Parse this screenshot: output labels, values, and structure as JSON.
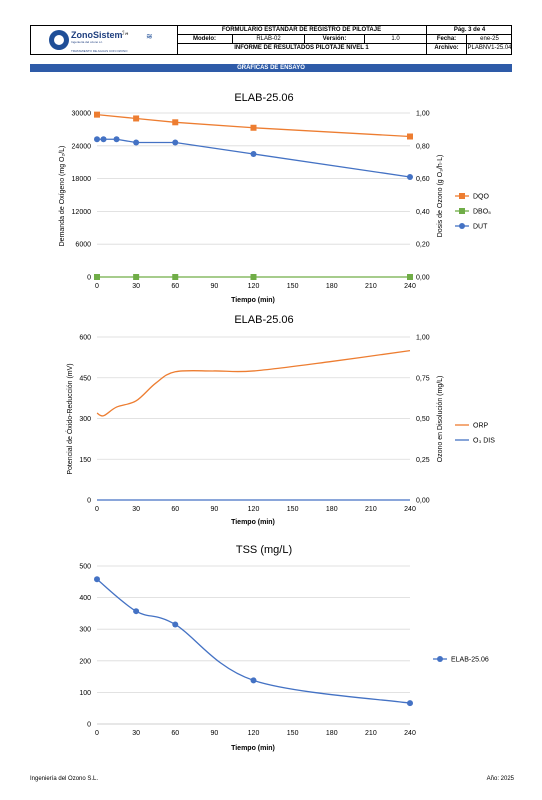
{
  "header": {
    "company_name": "ZonoSistem",
    "company_subtitle": "Ingeniería del ozono s.l.",
    "company_tagline": "TRATAMIENTO DE AGUAS CON OZONO",
    "form_title": "FORMULARIO ESTÁNDAR DE REGISTRO DE PILOTAJE",
    "page_label": "Pág. 3 de 4",
    "model_label": "Modelo:",
    "model_value": "RLAB-02",
    "version_label": "Versión:",
    "version_value": "1.0",
    "date_label": "Fecha:",
    "date_value": "ene-25",
    "report_title": "INFORME DE RESULTADOS PILOTAJE NIVEL 1",
    "file_label": "Archivo:",
    "file_value": "PLABNV1-25.04"
  },
  "section_title": "GRÁFICAS DE ENSAYO",
  "charts": {
    "c1": {
      "title": "ELAB-25.06",
      "ylabel": "Demanda de Oxígeno (mg O₂/L)",
      "y2label": "Dosis de Ozono (g O₃/h·L)",
      "xlabel": "Tiempo (min)"
    },
    "c2": {
      "title": "ELAB-25.06",
      "ylabel": "Potencial de Óxido-Reducción (mV)",
      "y2label": "Ozono en Disolución (mg/L)",
      "xlabel": "Tiempo (min)"
    },
    "c3": {
      "title": "TSS (mg/L)",
      "xlabel": "Tiempo (min)"
    }
  },
  "chart_data": [
    {
      "type": "line",
      "title": "ELAB-25.06",
      "xlabel": "Tiempo (min)",
      "ylabel": "Demanda de Oxígeno (mg O₂/L)",
      "y2label": "Dosis de Ozono (g O₃/h·L)",
      "xlim": [
        0,
        240
      ],
      "ylim": [
        0,
        30000
      ],
      "y2lim": [
        0,
        1.0
      ],
      "xticks": [
        "0",
        "30",
        "60",
        "90",
        "120",
        "150",
        "180",
        "210",
        "240"
      ],
      "yticks": [
        "0",
        "6000",
        "12000",
        "18000",
        "24000",
        "30000"
      ],
      "y2ticks": [
        "0,00",
        "0,20",
        "0,40",
        "0,60",
        "0,80",
        "1,00"
      ],
      "grid": true,
      "legend": "right",
      "series": [
        {
          "name": "DQO",
          "axis": "left",
          "color": "#ed7d31",
          "marker": "square",
          "x": [
            0,
            30,
            60,
            120,
            240
          ],
          "y": [
            29700,
            29000,
            28300,
            27300,
            25700
          ]
        },
        {
          "name": "DBO₅",
          "axis": "left",
          "color": "#70ad47",
          "marker": "square",
          "x": [
            0,
            30,
            60,
            120,
            240
          ],
          "y": [
            0,
            0,
            0,
            0,
            0
          ]
        },
        {
          "name": "DUT",
          "axis": "right",
          "color": "#4472c4",
          "marker": "circle",
          "x": [
            0,
            5,
            15,
            30,
            60,
            120,
            240
          ],
          "y": [
            0.84,
            0.84,
            0.84,
            0.82,
            0.82,
            0.75,
            0.61
          ]
        }
      ]
    },
    {
      "type": "line",
      "title": "ELAB-25.06",
      "xlabel": "Tiempo (min)",
      "ylabel": "Potencial de Óxido-Reducción (mV)",
      "y2label": "Ozono en Disolución (mg/L)",
      "xlim": [
        0,
        240
      ],
      "ylim": [
        0,
        600
      ],
      "y2lim": [
        0,
        1.0
      ],
      "xticks": [
        "0",
        "30",
        "60",
        "90",
        "120",
        "150",
        "180",
        "210",
        "240"
      ],
      "yticks": [
        "0",
        "150",
        "300",
        "450",
        "600"
      ],
      "y2ticks": [
        "0,00",
        "0,25",
        "0,50",
        "0,75",
        "1,00"
      ],
      "grid": true,
      "legend": "right",
      "series": [
        {
          "name": "ORP",
          "axis": "left",
          "color": "#ed7d31",
          "marker": "none",
          "smooth": true,
          "x": [
            0,
            5,
            15,
            30,
            45,
            60,
            90,
            120,
            180,
            240
          ],
          "y": [
            320,
            310,
            342,
            365,
            430,
            472,
            475,
            475,
            510,
            550
          ]
        },
        {
          "name": "O₃ DIS",
          "axis": "right",
          "color": "#4472c4",
          "marker": "none",
          "x": [
            0,
            240
          ],
          "y": [
            0,
            0
          ]
        }
      ]
    },
    {
      "type": "line",
      "title": "TSS (mg/L)",
      "xlabel": "Tiempo (min)",
      "ylabel": "",
      "xlim": [
        0,
        240
      ],
      "ylim": [
        0,
        500
      ],
      "xticks": [
        "0",
        "30",
        "60",
        "90",
        "120",
        "150",
        "180",
        "210",
        "240"
      ],
      "yticks": [
        "0",
        "100",
        "200",
        "300",
        "400",
        "500"
      ],
      "grid": true,
      "legend": "right",
      "series": [
        {
          "name": "ELAB-25.06",
          "axis": "left",
          "color": "#4472c4",
          "marker": "circle",
          "smooth": true,
          "x": [
            0,
            30,
            60,
            120,
            240
          ],
          "y": [
            458,
            357,
            315,
            138,
            66
          ]
        }
      ]
    }
  ],
  "footer": {
    "company": "Ingeniería del Ozono S.L.",
    "year": "Año: 2025"
  }
}
